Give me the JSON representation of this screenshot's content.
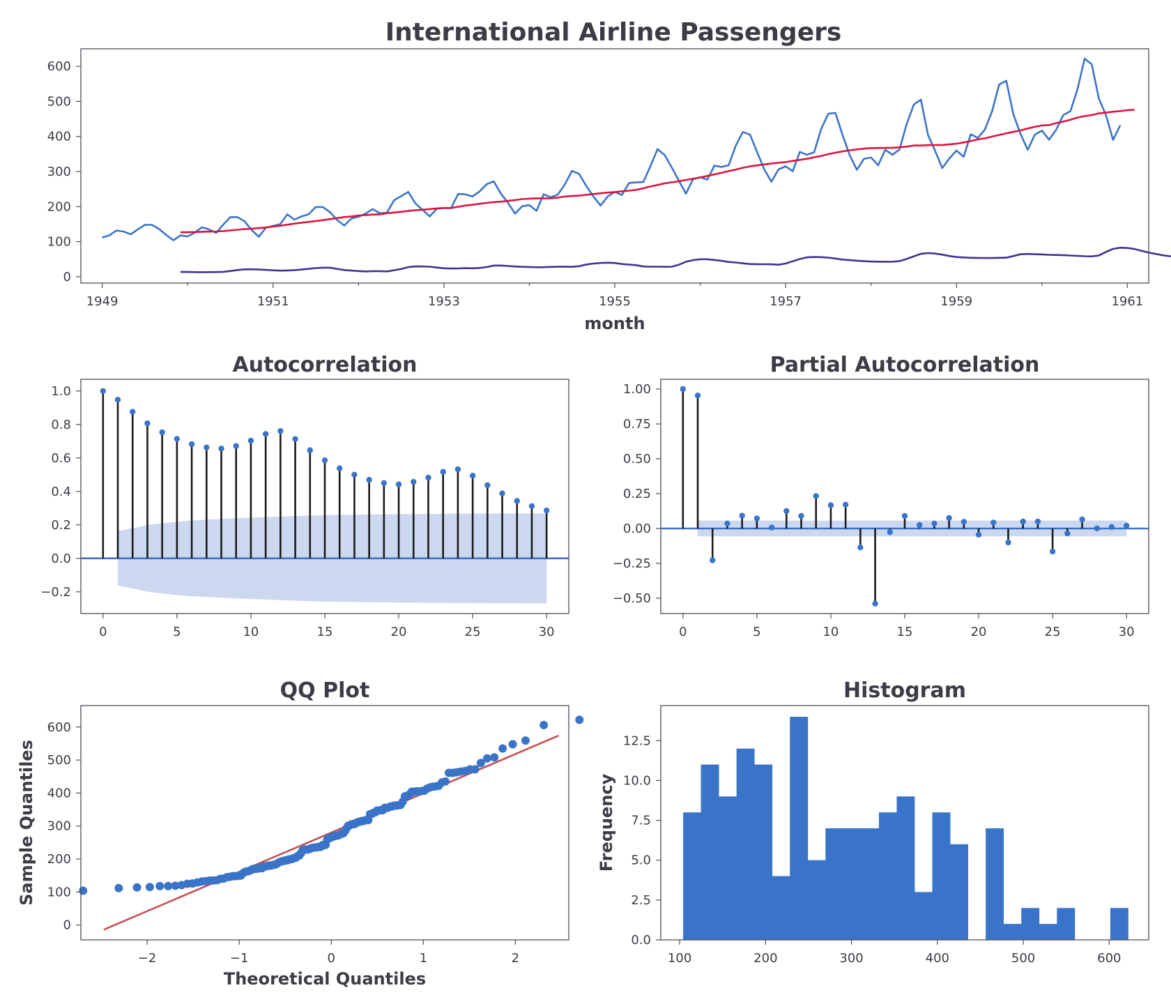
{
  "colors": {
    "series_blue": "#3a74c8",
    "rolling_mean": "#dc143c",
    "rolling_std": "#3f3491",
    "stem": "#1a1a1a",
    "conf_band": "#ccd8f0",
    "baseline": "#3a74c8",
    "qq_points": "#3a74c8",
    "qq_line": "#c44e52",
    "hist_bars": "#3a74c8",
    "text": "#3c3c46"
  },
  "chart_data": [
    {
      "id": "timeseries",
      "type": "line",
      "title": "International Airline Passengers",
      "xlabel": "month",
      "ylabel": "",
      "xlim": [
        1948.75,
        1961.25
      ],
      "ylim": [
        -18,
        650
      ],
      "x_ticks": [
        1949,
        1951,
        1953,
        1955,
        1957,
        1959,
        1961
      ],
      "x_tick_labels": [
        "1949",
        "1951",
        "1953",
        "1955",
        "1957",
        "1959",
        "1961"
      ],
      "x_minor_ticks": [
        1950,
        1952,
        1954,
        1956,
        1958,
        1960
      ],
      "y_ticks": [
        0,
        100,
        200,
        300,
        400,
        500,
        600
      ],
      "y_tick_labels": [
        "0",
        "100",
        "200",
        "300",
        "400",
        "500",
        "600"
      ],
      "x_start": "1949-01",
      "frequency": "monthly",
      "series": [
        {
          "role": "observed",
          "color_key": "series_blue",
          "values": [
            112,
            118,
            132,
            129,
            121,
            135,
            148,
            148,
            136,
            119,
            104,
            118,
            115,
            126,
            141,
            135,
            125,
            149,
            170,
            170,
            158,
            133,
            114,
            140,
            145,
            150,
            178,
            163,
            172,
            178,
            199,
            199,
            184,
            162,
            146,
            166,
            171,
            180,
            193,
            181,
            183,
            218,
            230,
            242,
            209,
            191,
            172,
            194,
            196,
            196,
            236,
            235,
            229,
            243,
            264,
            272,
            237,
            211,
            180,
            201,
            204,
            188,
            235,
            227,
            234,
            264,
            302,
            293,
            259,
            229,
            203,
            229,
            242,
            233,
            267,
            269,
            270,
            315,
            364,
            347,
            312,
            274,
            237,
            278,
            284,
            277,
            317,
            313,
            318,
            374,
            413,
            405,
            355,
            306,
            271,
            306,
            315,
            301,
            356,
            348,
            355,
            422,
            465,
            467,
            404,
            347,
            305,
            336,
            340,
            318,
            362,
            348,
            363,
            435,
            491,
            505,
            404,
            359,
            310,
            337,
            360,
            342,
            406,
            396,
            420,
            472,
            548,
            559,
            463,
            407,
            362,
            405,
            417,
            391,
            419,
            461,
            472,
            535,
            622,
            606,
            508,
            461,
            390,
            432
          ]
        },
        {
          "role": "rolling_mean",
          "color_key": "rolling_mean",
          "start_index": 11,
          "values": [
            126.7,
            126.9,
            127.6,
            128.3,
            128.8,
            129.2,
            130.3,
            132.2,
            134.0,
            135.8,
            136.9,
            138.8,
            140.5,
            143.2,
            145.7,
            148.4,
            151.5,
            154.2,
            156.4,
            158.8,
            161.6,
            164.4,
            167.3,
            170.2,
            172.0,
            174.6,
            176.0,
            177.3,
            178.2,
            181.2,
            183.1,
            185.2,
            187.5,
            189.8,
            191.2,
            192.9,
            195.0,
            196.2,
            196.2,
            199.5,
            203.0,
            205.2,
            208.0,
            210.7,
            212.9,
            214.3,
            216.4,
            218.8,
            221.5,
            222.6,
            223.8,
            223.3,
            223.8,
            225.7,
            228.8,
            230.4,
            231.3,
            233.5,
            235.8,
            238.0,
            240.1,
            241.3,
            243.9,
            245.4,
            247.8,
            252.2,
            257.3,
            261.8,
            266.2,
            269.2,
            272.2,
            276.1,
            279.5,
            283.3,
            287.5,
            291.9,
            296.4,
            301.3,
            305.4,
            310.8,
            314.9,
            317.6,
            320.3,
            322.8,
            325.0,
            327.1,
            330.4,
            333.3,
            336.4,
            340.4,
            344.4,
            349.7,
            353.8,
            357.3,
            360.8,
            363.2,
            365.3,
            366.8,
            367.2,
            367.2,
            367.9,
            369.0,
            371.0,
            374.2,
            374.2,
            375.3,
            375.7,
            375.8,
            377.5,
            379.5,
            383.0,
            387.0,
            391.7,
            394.8,
            399.6,
            404.2,
            409.0,
            413.0,
            417.3,
            422.8,
            427.5,
            431.5,
            432.6,
            438.1,
            442.5,
            447.8,
            454.0,
            458.1,
            461.1,
            465.9,
            468.3,
            470.5,
            472.4,
            474.8,
            476.2
          ]
        },
        {
          "role": "rolling_std",
          "color_key": "rolling_std",
          "start_index": 11,
          "values": [
            13.7,
            13.6,
            13.2,
            13.0,
            13.2,
            13.5,
            14.0,
            16.3,
            19.2,
            21.1,
            21.3,
            20.6,
            19.6,
            18.3,
            17.3,
            17.9,
            18.9,
            20.5,
            22.6,
            24.8,
            26.0,
            25.9,
            22.3,
            19.2,
            17.5,
            16.2,
            15.3,
            16.0,
            16.0,
            15.2,
            18.5,
            22.4,
            27.5,
            29.6,
            29.4,
            28.7,
            26.4,
            24.2,
            23.6,
            23.8,
            24.6,
            24.2,
            25.1,
            27.8,
            31.9,
            32.1,
            30.8,
            29.3,
            28.4,
            28.0,
            27.2,
            27.4,
            28.1,
            28.6,
            29.0,
            28.4,
            30.1,
            34.8,
            37.7,
            39.3,
            40.0,
            39.2,
            36.2,
            34.6,
            33.1,
            29.4,
            28.7,
            28.8,
            28.3,
            28.7,
            34.3,
            42.8,
            47.5,
            49.9,
            50.0,
            47.9,
            45.5,
            42.3,
            40.7,
            38.3,
            36.2,
            35.9,
            35.7,
            35.4,
            34.3,
            37.6,
            44.3,
            50.6,
            55.3,
            56.3,
            56.0,
            54.6,
            52.0,
            48.9,
            47.4,
            45.9,
            44.4,
            43.5,
            43.0,
            42.9,
            43.0,
            44.7,
            50.8,
            58.4,
            65.3,
            67.4,
            66.0,
            63.1,
            59.1,
            56.2,
            55.1,
            54.0,
            53.8,
            53.5,
            53.4,
            54.0,
            54.4,
            59.2,
            64.2,
            65.1,
            64.4,
            63.7,
            62.5,
            62.2,
            61.8,
            60.5,
            59.8,
            58.6,
            58.1,
            60.7,
            70.8,
            79.5,
            82.8,
            82.1,
            79.3,
            74.0,
            68.9,
            65.1,
            61.2,
            58.5,
            56.1,
            55.9,
            55.1,
            57.7,
            65.6,
            76.7,
            84.0,
            85.3,
            82.1,
            79.6,
            76.7
          ]
        }
      ]
    },
    {
      "id": "acf",
      "type": "stem",
      "title": "Autocorrelation",
      "xlabel": "",
      "ylabel": "",
      "xlim": [
        -1.5,
        31.5
      ],
      "ylim": [
        -0.33,
        1.07
      ],
      "x_ticks": [
        0,
        5,
        10,
        15,
        20,
        25,
        30
      ],
      "x_tick_labels": [
        "0",
        "5",
        "10",
        "15",
        "20",
        "25",
        "30"
      ],
      "y_ticks": [
        -0.2,
        0.0,
        0.2,
        0.4,
        0.6,
        0.8,
        1.0
      ],
      "y_tick_labels": [
        "−0.2",
        "0.0",
        "0.2",
        "0.4",
        "0.6",
        "0.8",
        "1.0"
      ],
      "lags": [
        0,
        1,
        2,
        3,
        4,
        5,
        6,
        7,
        8,
        9,
        10,
        11,
        12,
        13,
        14,
        15,
        16,
        17,
        18,
        19,
        20,
        21,
        22,
        23,
        24,
        25,
        26,
        27,
        28,
        29,
        30
      ],
      "values": [
        1.0,
        0.948,
        0.876,
        0.807,
        0.753,
        0.714,
        0.682,
        0.663,
        0.656,
        0.671,
        0.703,
        0.743,
        0.761,
        0.713,
        0.646,
        0.586,
        0.538,
        0.5,
        0.469,
        0.45,
        0.442,
        0.457,
        0.482,
        0.517,
        0.532,
        0.494,
        0.437,
        0.388,
        0.343,
        0.312,
        0.286
      ],
      "conf_upper": [
        null,
        0.163,
        0.18,
        0.199,
        0.21,
        0.219,
        0.226,
        0.231,
        0.235,
        0.239,
        0.243,
        0.246,
        0.25,
        0.253,
        0.256,
        0.258,
        0.26,
        0.261,
        0.262,
        0.263,
        0.264,
        0.265,
        0.266,
        0.266,
        0.267,
        0.267,
        0.268,
        0.268,
        0.268,
        0.269,
        0.269
      ]
    },
    {
      "id": "pacf",
      "type": "stem",
      "title": "Partial Autocorrelation",
      "xlabel": "",
      "ylabel": "",
      "xlim": [
        -1.5,
        31.5
      ],
      "ylim": [
        -0.61,
        1.07
      ],
      "x_ticks": [
        0,
        5,
        10,
        15,
        20,
        25,
        30
      ],
      "x_tick_labels": [
        "0",
        "5",
        "10",
        "15",
        "20",
        "25",
        "30"
      ],
      "y_ticks": [
        -0.5,
        -0.25,
        0.0,
        0.25,
        0.5,
        0.75,
        1.0
      ],
      "y_tick_labels": [
        "−0.50",
        "−0.25",
        "0.00",
        "0.25",
        "0.50",
        "0.75",
        "1.00"
      ],
      "lags": [
        0,
        1,
        2,
        3,
        4,
        5,
        6,
        7,
        8,
        9,
        10,
        11,
        12,
        13,
        14,
        15,
        16,
        17,
        18,
        19,
        20,
        21,
        22,
        23,
        24,
        25,
        26,
        27,
        28,
        29,
        30
      ],
      "values": [
        1.0,
        0.954,
        -0.228,
        0.036,
        0.092,
        0.072,
        0.007,
        0.125,
        0.09,
        0.233,
        0.167,
        0.171,
        -0.136,
        -0.539,
        -0.026,
        0.09,
        0.025,
        0.036,
        0.075,
        0.048,
        -0.044,
        0.043,
        -0.1,
        0.05,
        0.05,
        -0.165,
        -0.035,
        0.065,
        0.001,
        0.01,
        0.02
      ],
      "conf_band": 0.057
    },
    {
      "id": "qq",
      "type": "scatter",
      "title": "QQ Plot",
      "xlabel": "Theoretical Quantiles",
      "ylabel": "Sample Quantiles",
      "xlim": [
        -2.72,
        2.58
      ],
      "ylim": [
        -45,
        665
      ],
      "x_ticks": [
        -2,
        -1,
        0,
        1,
        2
      ],
      "x_tick_labels": [
        "−2",
        "−1",
        "0",
        "1",
        "2"
      ],
      "y_ticks": [
        0,
        100,
        200,
        300,
        400,
        500,
        600
      ],
      "y_tick_labels": [
        "0",
        "100",
        "200",
        "300",
        "400",
        "500",
        "600"
      ],
      "reference_line": {
        "x": [
          -2.47,
          2.47
        ],
        "y": [
          -14,
          574
        ]
      }
    },
    {
      "id": "histogram",
      "type": "bar",
      "title": "Histogram",
      "xlabel": "",
      "ylabel": "Frequency",
      "xlim": [
        78,
        646
      ],
      "ylim": [
        0,
        14.7
      ],
      "x_ticks": [
        100,
        200,
        300,
        400,
        500,
        600
      ],
      "x_tick_labels": [
        "100",
        "200",
        "300",
        "400",
        "500",
        "600"
      ],
      "y_ticks": [
        0,
        2.5,
        5.0,
        7.5,
        10.0,
        12.5
      ],
      "y_tick_labels": [
        "0.0",
        "2.5",
        "5.0",
        "7.5",
        "10.0",
        "12.5"
      ],
      "bin_start": 104,
      "bin_width": 20.72,
      "counts": [
        8,
        11,
        9,
        12,
        11,
        4,
        14,
        5,
        7,
        7,
        7,
        8,
        9,
        3,
        8,
        6,
        0,
        7,
        1,
        2,
        1,
        2,
        0,
        0,
        2
      ]
    }
  ]
}
